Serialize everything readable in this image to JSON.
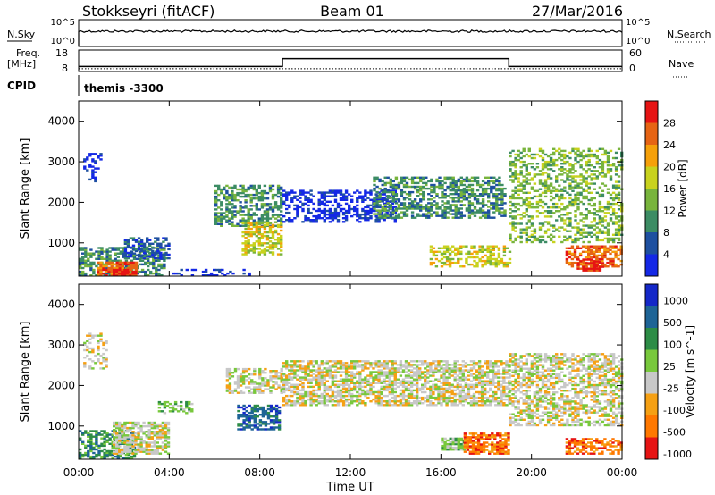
{
  "header": {
    "title": "Stokkseyri (fitACF)",
    "beam": "Beam 01",
    "date": "27/Mar/2016"
  },
  "top_panels": {
    "nsky_label": "N.Sky",
    "nsearch_label": "N.Search",
    "freq_label": "Freq.",
    "freq_unit": "[MHz]",
    "nave_label": "Nave",
    "cpid_label": "CPID",
    "cpid_value": "themis -3300",
    "nsky_ticks": [
      "10^5",
      "10^0"
    ],
    "nsearch_ticks": [
      "10^5",
      "10^0"
    ],
    "freq_ticks": [
      "18",
      "8"
    ],
    "nave_ticks": [
      "60",
      "0"
    ],
    "freq_mhz": [
      {
        "t": 0,
        "v": 9.3
      },
      {
        "t": 24,
        "v": 9.3
      }
    ],
    "nave": [
      {
        "t": 0,
        "v": 14
      },
      {
        "t": 9,
        "v": 14
      },
      {
        "t": 9,
        "v": 36
      },
      {
        "t": 19,
        "v": 36
      },
      {
        "t": 19,
        "v": 14
      },
      {
        "t": 24,
        "v": 14
      }
    ]
  },
  "chart_data": [
    {
      "type": "heatmap",
      "name": "power",
      "xlabel": "",
      "ylabel": "Slant Range [km]",
      "xlim": [
        0,
        24
      ],
      "ylim": [
        180,
        4500
      ],
      "yticks": [
        "1000",
        "2000",
        "3000",
        "4000"
      ],
      "colorbar_label": "Power [dB]",
      "colorbar_ticks": [
        "4",
        "8",
        "12",
        "16",
        "20",
        "24",
        "28"
      ],
      "colorbar_colors": [
        "#1428e6",
        "#1e50a0",
        "#3c8c64",
        "#78b43c",
        "#c8d21e",
        "#f5a00a",
        "#e66414",
        "#e61414"
      ],
      "regions": [
        {
          "t0": 0.2,
          "t1": 1.0,
          "r0": 2500,
          "r1": 3200,
          "c": 0,
          "d": 0.35
        },
        {
          "t0": 0.0,
          "t1": 3.8,
          "r0": 180,
          "r1": 900,
          "c": 2,
          "d": 0.55
        },
        {
          "t0": 0.8,
          "t1": 2.5,
          "r0": 180,
          "r1": 500,
          "c": 6,
          "d": 0.75
        },
        {
          "t0": 1.5,
          "t1": 2.5,
          "r0": 180,
          "r1": 330,
          "c": 7,
          "d": 0.8
        },
        {
          "t0": 2.0,
          "t1": 4.0,
          "r0": 600,
          "r1": 1100,
          "c": 1,
          "d": 0.55
        },
        {
          "t0": 4.0,
          "t1": 7.5,
          "r0": 180,
          "r1": 350,
          "c": 0,
          "d": 0.3
        },
        {
          "t0": 6.0,
          "t1": 8.9,
          "r0": 1400,
          "r1": 2400,
          "c": 2,
          "d": 0.55
        },
        {
          "t0": 7.2,
          "t1": 8.9,
          "r0": 700,
          "r1": 1500,
          "c": 4,
          "d": 0.55
        },
        {
          "t0": 9.0,
          "t1": 14.0,
          "r0": 1500,
          "r1": 2300,
          "c": 0,
          "d": 0.45
        },
        {
          "t0": 13.0,
          "t1": 18.8,
          "r0": 1600,
          "r1": 2600,
          "c": 2,
          "d": 0.55
        },
        {
          "t0": 15.5,
          "t1": 19.0,
          "r0": 400,
          "r1": 900,
          "c": 4,
          "d": 0.45
        },
        {
          "t0": 19.0,
          "t1": 24.0,
          "r0": 1000,
          "r1": 3300,
          "c": 3,
          "d": 0.4
        },
        {
          "t0": 21.5,
          "t1": 24.0,
          "r0": 400,
          "r1": 900,
          "c": 6,
          "d": 0.55
        },
        {
          "t0": 22.0,
          "t1": 23.2,
          "r0": 300,
          "r1": 600,
          "c": 7,
          "d": 0.65
        }
      ]
    },
    {
      "type": "heatmap",
      "name": "velocity",
      "xlabel": "Time UT",
      "ylabel": "Slant Range [km]",
      "xlim": [
        0,
        24
      ],
      "ylim": [
        180,
        4500
      ],
      "xticks": [
        "00:00",
        "04:00",
        "08:00",
        "12:00",
        "16:00",
        "20:00",
        "00:00"
      ],
      "yticks": [
        "1000",
        "2000",
        "3000",
        "4000"
      ],
      "colorbar_label": "Velocity [m s^-1]",
      "colorbar_ticks": [
        "1000",
        "500",
        "100",
        "25",
        "-25",
        "-100",
        "-500",
        "-1000"
      ],
      "colorbar_colors": [
        "#1428c8",
        "#1e6496",
        "#2d8c46",
        "#78c83c",
        "#c8c8c8",
        "#f5a014",
        "#ff7800",
        "#e61414"
      ],
      "regions": [
        {
          "t0": 0.2,
          "t1": 1.2,
          "r0": 2400,
          "r1": 3300,
          "c": 4,
          "d": 0.35
        },
        {
          "t0": 0.0,
          "t1": 2.5,
          "r0": 180,
          "r1": 900,
          "c": 2,
          "d": 0.55
        },
        {
          "t0": 1.5,
          "t1": 4.0,
          "r0": 300,
          "r1": 1100,
          "c": 4,
          "d": 0.7
        },
        {
          "t0": 3.5,
          "t1": 5.0,
          "r0": 1300,
          "r1": 1600,
          "c": 3,
          "d": 0.5
        },
        {
          "t0": 7.0,
          "t1": 8.9,
          "r0": 900,
          "r1": 1500,
          "c": 1,
          "d": 0.55
        },
        {
          "t0": 6.5,
          "t1": 8.9,
          "r0": 1800,
          "r1": 2400,
          "c": 4,
          "d": 0.55
        },
        {
          "t0": 9.0,
          "t1": 19.0,
          "r0": 1500,
          "r1": 2600,
          "c": 4,
          "d": 0.65
        },
        {
          "t0": 16.0,
          "t1": 17.0,
          "r0": 400,
          "r1": 700,
          "c": 3,
          "d": 0.8
        },
        {
          "t0": 17.0,
          "t1": 19.0,
          "r0": 300,
          "r1": 800,
          "c": 6,
          "d": 0.75
        },
        {
          "t0": 19.0,
          "t1": 24.0,
          "r0": 1000,
          "r1": 2800,
          "c": 4,
          "d": 0.55
        },
        {
          "t0": 21.5,
          "t1": 24.0,
          "r0": 300,
          "r1": 700,
          "c": 6,
          "d": 0.6
        }
      ]
    }
  ]
}
